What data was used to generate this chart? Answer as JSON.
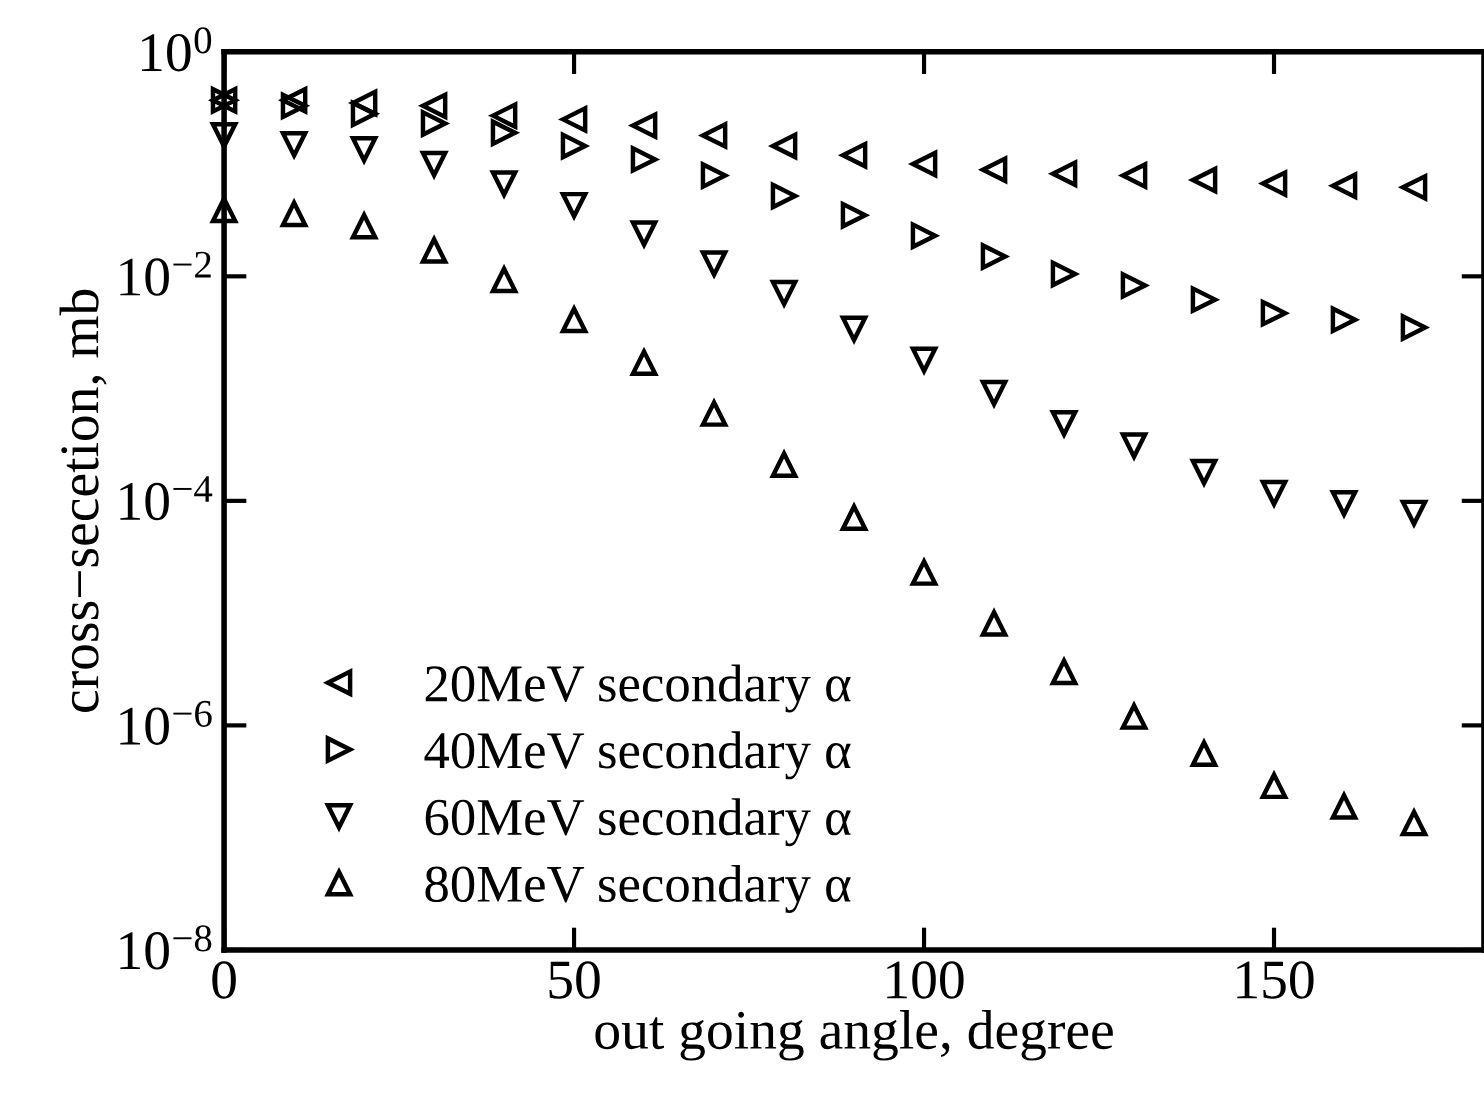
{
  "chart_data": {
    "type": "scatter",
    "xlabel": "out going angle, degree",
    "ylabel": "cross−secetion, mb",
    "log": "y",
    "x": [
      0,
      10,
      20,
      30,
      40,
      50,
      60,
      70,
      80,
      90,
      100,
      110,
      120,
      130,
      140,
      150,
      160,
      170
    ],
    "series": [
      {
        "name": "20MeV secondary α",
        "color": "#000000",
        "marker": "triangle-left",
        "values": [
          0.37,
          0.37,
          0.35,
          0.33,
          0.27,
          0.25,
          0.22,
          0.18,
          0.145,
          0.12,
          0.1,
          0.089,
          0.082,
          0.079,
          0.072,
          0.067,
          0.064,
          0.062
        ]
      },
      {
        "name": "40MeV secondary α",
        "color": "#000000",
        "marker": "triangle-right",
        "values": [
          0.37,
          0.33,
          0.28,
          0.23,
          0.19,
          0.145,
          0.11,
          0.079,
          0.052,
          0.035,
          0.023,
          0.015,
          0.0105,
          0.0083,
          0.0062,
          0.0047,
          0.0041,
          0.0035
        ]
      },
      {
        "name": "60MeV secondary α",
        "color": "#000000",
        "marker": "triangle-down",
        "values": [
          0.18,
          0.15,
          0.135,
          0.1,
          0.067,
          0.043,
          0.024,
          0.013,
          0.0071,
          0.0034,
          0.0018,
          0.00091,
          0.00049,
          0.00031,
          0.00018,
          0.000117,
          9.5e-05,
          7.8e-05
        ]
      },
      {
        "name": "80MeV secondary α",
        "color": "#000000",
        "marker": "triangle",
        "values": [
          0.039,
          0.036,
          0.028,
          0.017,
          0.0093,
          0.0041,
          0.0017,
          0.0006,
          0.00021,
          7.1e-05,
          2.3e-05,
          8.1e-06,
          3e-06,
          1.2e-06,
          5.6e-07,
          2.9e-07,
          1.9e-07,
          1.35e-07
        ]
      }
    ],
    "xlim": [
      0,
      180
    ],
    "xticks": [
      0,
      50,
      100,
      150
    ],
    "ylim": [
      1e-08,
      1
    ],
    "yticks": [
      {
        "value": 1,
        "label": "10$^{0}$"
      },
      {
        "value": 0.01,
        "label": "10$^{−2}$"
      },
      {
        "value": 0.0001,
        "label": "10$^{−4}$"
      },
      {
        "value": 1e-06,
        "label": "10$^{−6}$"
      },
      {
        "value": 1e-08,
        "label": "10$^{−8}$"
      }
    ],
    "grid": false,
    "legend": "bottom left"
  }
}
